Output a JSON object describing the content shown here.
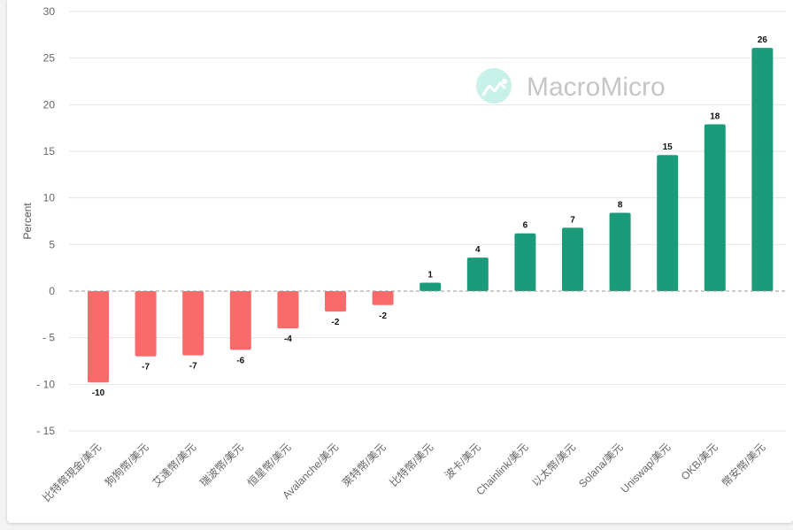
{
  "chart_data": {
    "type": "bar",
    "title": "",
    "xlabel": "",
    "ylabel": "Percent",
    "ylim": [
      -15,
      30
    ],
    "yticks": [
      30,
      25,
      20,
      15,
      10,
      5,
      0,
      -5,
      -10,
      -15
    ],
    "grid": true,
    "legend": "none",
    "categories": [
      "比特幣現金/美元",
      "狗狗幣/美元",
      "艾達幣/美元",
      "瑞波幣/美元",
      "恒星幣/美元",
      "Avalanche/美元",
      "萊特幣/美元",
      "比特幣/美元",
      "波卡/美元",
      "Chainlink/美元",
      "以太幣/美元",
      "Solana/美元",
      "Uniswap/美元",
      "OKB/美元",
      "幣安幣/美元"
    ],
    "values": [
      -9.8,
      -7.0,
      -6.9,
      -6.3,
      -4.0,
      -2.2,
      -1.5,
      0.9,
      3.6,
      6.2,
      6.8,
      8.4,
      14.6,
      17.9,
      26.1
    ],
    "data_labels": [
      "-10",
      "-7",
      "-7",
      "-6",
      "-4",
      "-2",
      "-2",
      "1",
      "4",
      "6",
      "7",
      "8",
      "15",
      "18",
      "26"
    ],
    "colors": {
      "positive": "#1a9c7b",
      "negative": "#fa6a6a"
    }
  },
  "watermark": {
    "text": "MacroMicro",
    "icon": "chart-logo-icon"
  }
}
